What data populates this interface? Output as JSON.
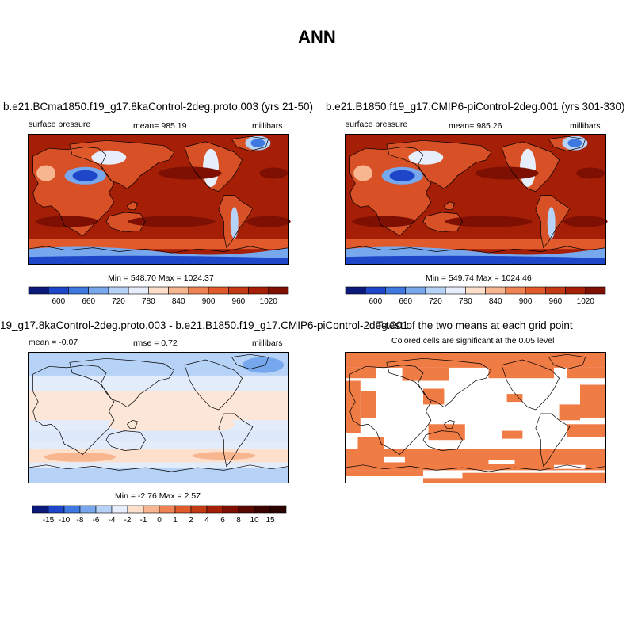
{
  "title": "ANN",
  "palettes": {
    "field": [
      "#0b1a7a",
      "#1e46c8",
      "#3f78e0",
      "#77a8ee",
      "#b6d2f6",
      "#e6eefb",
      "#fde0cc",
      "#f7b590",
      "#ef8354",
      "#e05a2b",
      "#c23b15",
      "#a51f07",
      "#7d0f03"
    ],
    "diff": [
      "#0b1a7a",
      "#1e46c8",
      "#3f78e0",
      "#77a8ee",
      "#b6d2f6",
      "#e6eefb",
      "#fde0cc",
      "#f7b590",
      "#ef8354",
      "#e05a2b",
      "#c23b15",
      "#a51f07",
      "#7d0f03"
    ]
  },
  "panels": {
    "p1": {
      "title": "b.e21.BCma1850.f19_g17.8kaControl-2deg.proto.003 (yrs 21-50)",
      "left_label": "surface pressure",
      "center_label": "mean= 985.19",
      "right_label": "millibars",
      "minmax": "Min = 548.70 Max = 1024.37",
      "colorbar_labels": [
        "600",
        "660",
        "720",
        "780",
        "840",
        "900",
        "960",
        "1020"
      ]
    },
    "p2": {
      "title": "b.e21.B1850.f19_g17.CMIP6-piControl-2deg.001 (yrs 301-330)",
      "left_label": "surface pressure",
      "center_label": "mean= 985.26",
      "right_label": "millibars",
      "minmax": "Min = 549.74 Max = 1024.46",
      "colorbar_labels": [
        "600",
        "660",
        "720",
        "780",
        "840",
        "900",
        "960",
        "1020"
      ]
    },
    "p3": {
      "title": "19_g17.8kaControl-2deg.proto.003 - b.e21.B1850.f19_g17.CMIP6-piControl-2deg.001",
      "left_label": "mean =  -0.07",
      "center_label": "rmse =   0.72",
      "right_label": "millibars",
      "minmax": "Min =  -2.76 Max =   2.57",
      "colorbar_labels": [
        "-15",
        "-10",
        "-8",
        "-6",
        "-4",
        "-2",
        "-1",
        "0",
        "1",
        "2",
        "4",
        "6",
        "8",
        "10",
        "15"
      ]
    },
    "p4": {
      "title": "T-test of the two means at each grid point",
      "subtitle": "Colored cells are significant at the 0.05 level",
      "significant_color": "#ef7b45"
    }
  }
}
